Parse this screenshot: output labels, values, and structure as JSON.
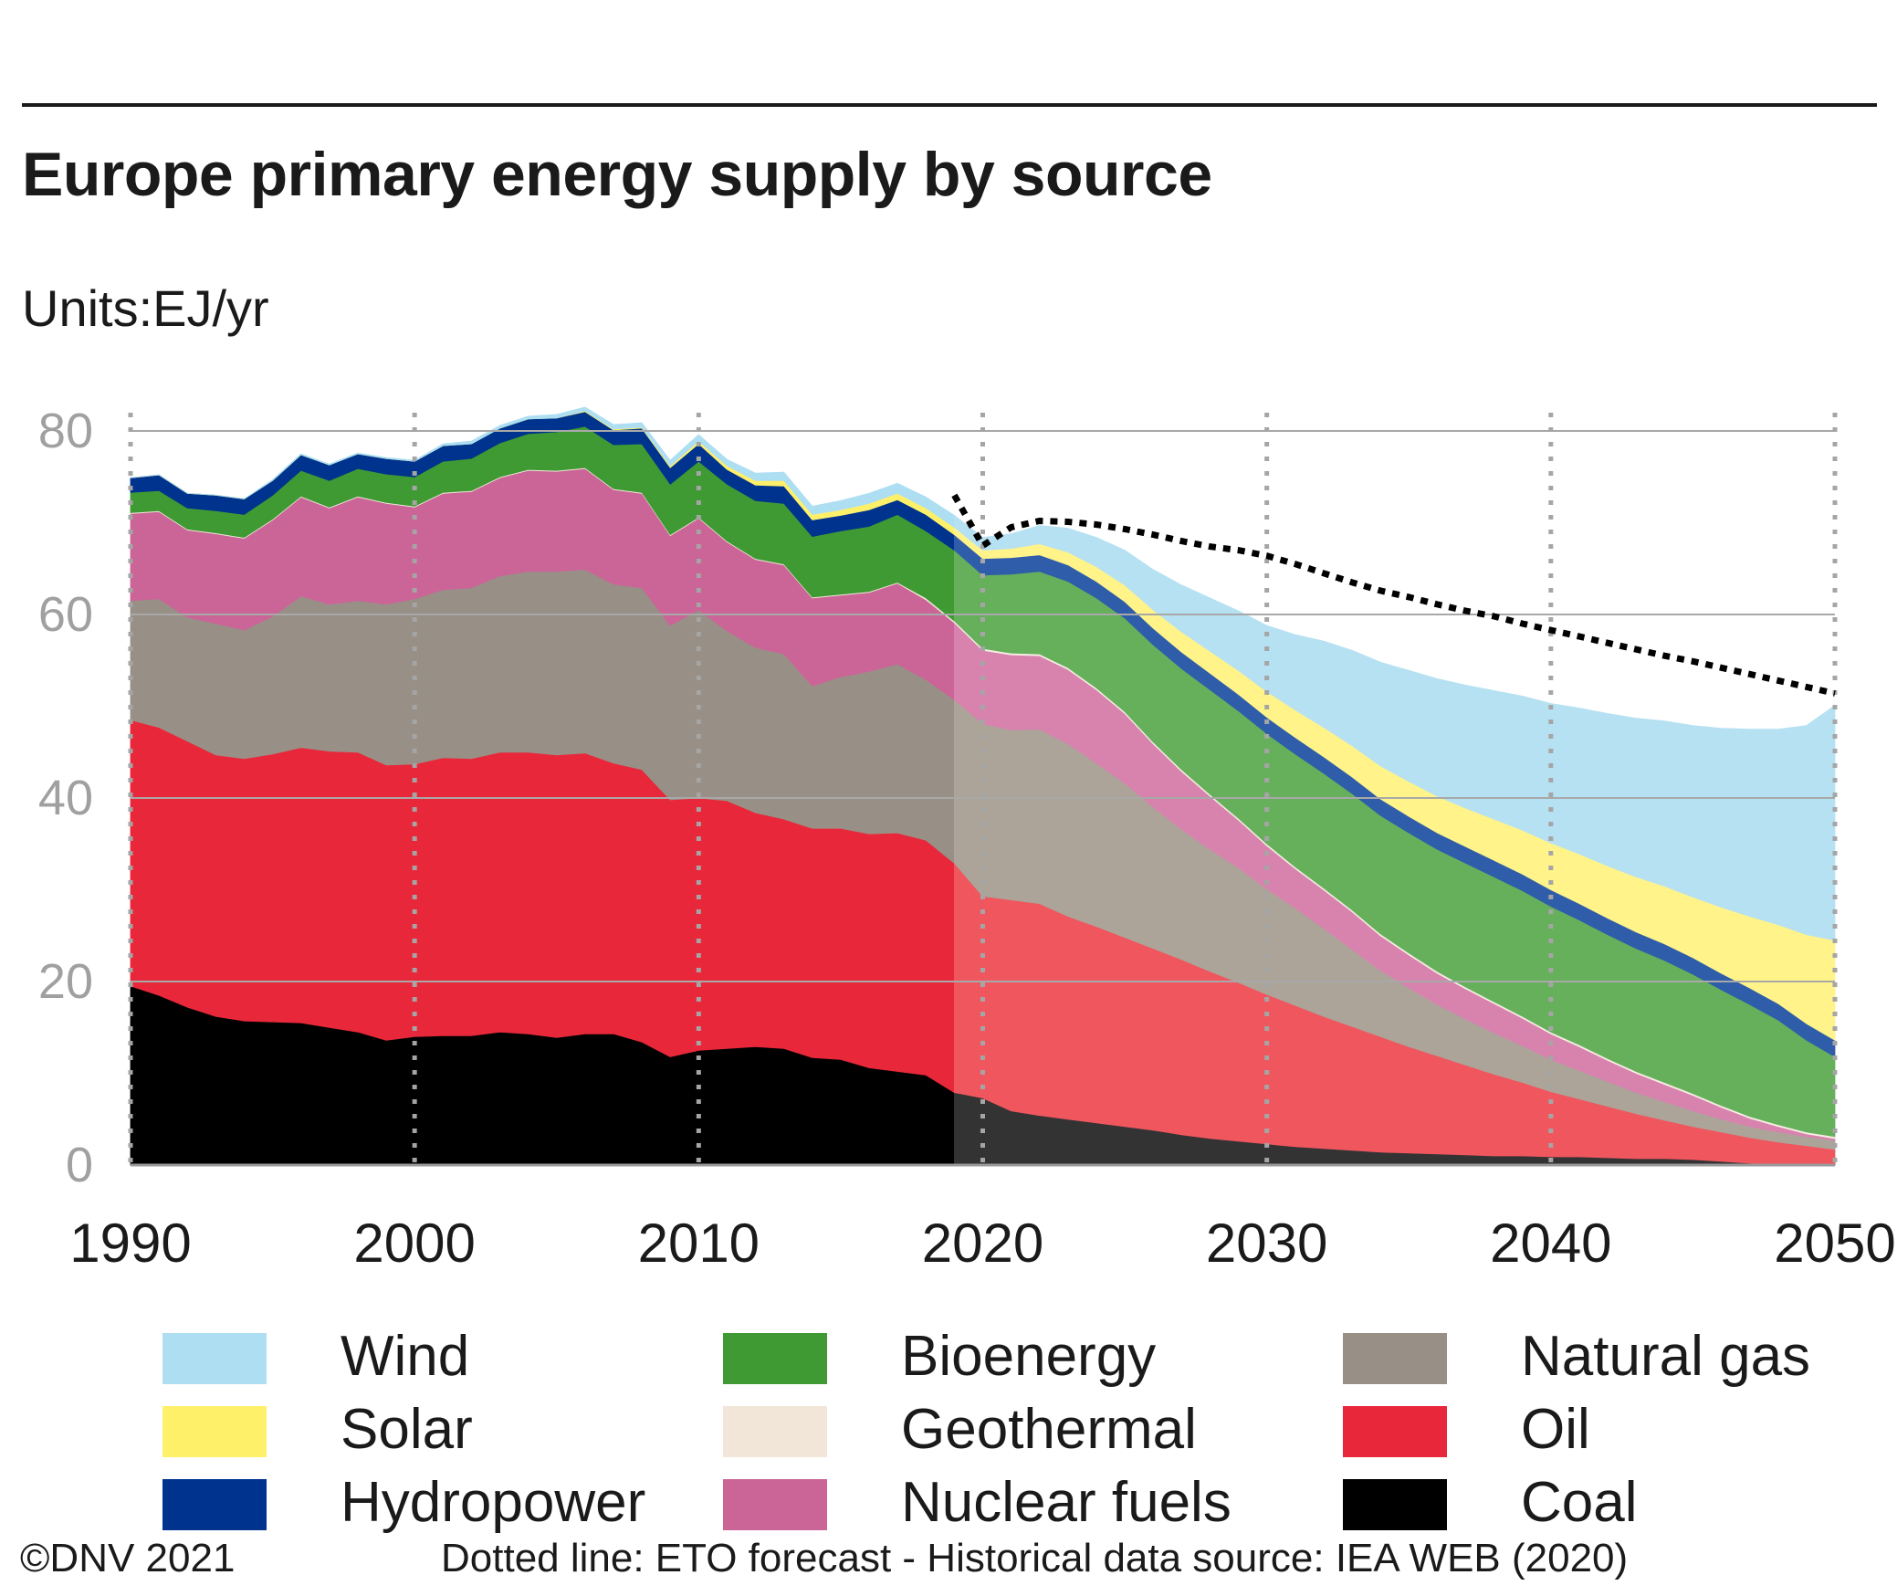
{
  "header": {
    "title": "Europe primary energy supply by source",
    "units": "Units:EJ/yr"
  },
  "footer": {
    "copyright": "©DNV 2021",
    "note": "Dotted line: ETO forecast - Historical data source: IEA WEB (2020)"
  },
  "chart_data": {
    "type": "area",
    "stacked": true,
    "forecast_start": 2019,
    "xlim": [
      1990,
      2050
    ],
    "ylim": [
      0,
      80
    ],
    "x_ticks": [
      1990,
      2000,
      2010,
      2020,
      2030,
      2040,
      2050
    ],
    "y_ticks": [
      0,
      20,
      40,
      60,
      80
    ],
    "grid": true,
    "legend_position": "bottom",
    "x": [
      1990,
      1991,
      1992,
      1993,
      1994,
      1995,
      1996,
      1997,
      1998,
      1999,
      2000,
      2001,
      2002,
      2003,
      2004,
      2005,
      2006,
      2007,
      2008,
      2009,
      2010,
      2011,
      2012,
      2013,
      2014,
      2015,
      2016,
      2017,
      2018,
      2019,
      2020,
      2021,
      2022,
      2023,
      2024,
      2025,
      2026,
      2027,
      2028,
      2029,
      2030,
      2031,
      2032,
      2033,
      2034,
      2035,
      2036,
      2037,
      2038,
      2039,
      2040,
      2041,
      2042,
      2043,
      2044,
      2045,
      2046,
      2047,
      2048,
      2049,
      2050
    ],
    "series": [
      {
        "name": "Coal",
        "color": "#000000",
        "forecast_color": "#333333",
        "values": [
          19.5,
          18.5,
          17.2,
          16.2,
          15.7,
          15.6,
          15.5,
          15.0,
          14.5,
          13.6,
          14.0,
          14.1,
          14.1,
          14.5,
          14.3,
          13.9,
          14.3,
          14.3,
          13.4,
          11.8,
          12.5,
          12.7,
          12.9,
          12.7,
          11.7,
          11.5,
          10.6,
          10.2,
          9.8,
          7.9,
          7.3,
          5.9,
          5.4,
          5.0,
          4.6,
          4.2,
          3.8,
          3.3,
          2.9,
          2.6,
          2.3,
          2.0,
          1.8,
          1.6,
          1.4,
          1.3,
          1.2,
          1.1,
          1.0,
          1.0,
          0.9,
          0.9,
          0.8,
          0.7,
          0.7,
          0.6,
          0.4,
          0.2,
          0.1,
          0.1,
          0.1
        ]
      },
      {
        "name": "Oil",
        "color": "#E8283A",
        "forecast_color": "#EF565E",
        "values": [
          29.0,
          29.2,
          29.0,
          28.5,
          28.6,
          29.2,
          30.0,
          30.1,
          30.5,
          30.0,
          29.7,
          30.3,
          30.2,
          30.5,
          30.7,
          30.8,
          30.6,
          29.5,
          29.7,
          28.0,
          27.5,
          27.0,
          25.5,
          25.0,
          25.0,
          25.2,
          25.5,
          26.0,
          25.6,
          25.0,
          22.0,
          23.0,
          23.1,
          22.1,
          21.4,
          20.6,
          19.8,
          19.1,
          18.2,
          17.3,
          16.3,
          15.4,
          14.4,
          13.5,
          12.6,
          11.6,
          10.7,
          9.8,
          8.9,
          8.0,
          7.1,
          6.3,
          5.6,
          4.9,
          4.2,
          3.6,
          3.2,
          2.8,
          2.4,
          2.0,
          1.6
        ]
      },
      {
        "name": "Natural gas",
        "color": "#989086",
        "forecast_color": "#ACA499",
        "values": [
          13.0,
          14.0,
          13.5,
          14.3,
          14.0,
          15.0,
          16.5,
          16.0,
          16.5,
          17.5,
          18.0,
          18.3,
          18.6,
          19.2,
          19.7,
          20.0,
          20.0,
          19.5,
          19.8,
          19.0,
          20.5,
          18.5,
          18.0,
          18.0,
          15.5,
          16.5,
          17.7,
          18.4,
          17.5,
          17.8,
          18.8,
          18.5,
          19.0,
          18.8,
          17.8,
          16.8,
          15.4,
          14.2,
          13.3,
          12.5,
          11.5,
          10.6,
          9.6,
          8.4,
          7.2,
          6.4,
          5.6,
          5.0,
          4.5,
          4.0,
          3.5,
          3.1,
          2.7,
          2.3,
          2.0,
          1.7,
          1.4,
          1.2,
          1.1,
          1.0,
          1.0
        ]
      },
      {
        "name": "Nuclear fuels",
        "color": "#CB6598",
        "forecast_color": "#D883AE",
        "values": [
          9.5,
          9.5,
          9.5,
          9.8,
          10.0,
          10.5,
          10.8,
          10.5,
          11.3,
          11.0,
          10.0,
          10.5,
          10.5,
          10.7,
          11.0,
          10.9,
          11.0,
          10.3,
          10.3,
          9.8,
          10.0,
          9.7,
          9.6,
          9.7,
          9.6,
          8.9,
          8.6,
          8.8,
          8.7,
          8.4,
          8.0,
          8.2,
          8.0,
          8.1,
          8.0,
          7.6,
          6.9,
          6.3,
          5.8,
          5.2,
          4.7,
          4.3,
          4.2,
          4.1,
          3.8,
          3.6,
          3.4,
          3.3,
          3.2,
          3.0,
          2.8,
          2.6,
          2.3,
          2.1,
          1.9,
          1.7,
          1.3,
          0.9,
          0.6,
          0.3,
          0.2
        ]
      },
      {
        "name": "Geothermal",
        "color": "#F2E6D8",
        "forecast_color": "#F6EDE3",
        "values": [
          0.1,
          0.1,
          0.1,
          0.1,
          0.1,
          0.1,
          0.1,
          0.1,
          0.1,
          0.1,
          0.1,
          0.1,
          0.1,
          0.1,
          0.1,
          0.1,
          0.1,
          0.1,
          0.1,
          0.1,
          0.1,
          0.1,
          0.1,
          0.1,
          0.1,
          0.1,
          0.1,
          0.1,
          0.2,
          0.2,
          0.2,
          0.2,
          0.2,
          0.2,
          0.2,
          0.2,
          0.2,
          0.2,
          0.2,
          0.2,
          0.2,
          0.2,
          0.2,
          0.2,
          0.2,
          0.2,
          0.2,
          0.2,
          0.2,
          0.2,
          0.2,
          0.2,
          0.2,
          0.2,
          0.2,
          0.2,
          0.2,
          0.2,
          0.2,
          0.2,
          0.2
        ]
      },
      {
        "name": "Bioenergy",
        "color": "#3F9A34",
        "forecast_color": "#66B05C",
        "values": [
          2.2,
          2.2,
          2.3,
          2.4,
          2.5,
          2.6,
          2.8,
          2.9,
          3.0,
          3.1,
          3.2,
          3.4,
          3.5,
          3.7,
          3.9,
          4.2,
          4.5,
          4.8,
          5.3,
          5.5,
          6.1,
          6.2,
          6.3,
          6.6,
          6.6,
          6.9,
          7.1,
          7.4,
          7.3,
          7.7,
          8.0,
          8.6,
          9.0,
          9.4,
          9.8,
          10.2,
          10.6,
          11.0,
          11.4,
          11.7,
          12.0,
          12.3,
          12.5,
          12.7,
          12.9,
          13.1,
          13.3,
          13.5,
          13.6,
          13.7,
          13.7,
          13.6,
          13.5,
          13.4,
          13.3,
          13.0,
          12.6,
          12.2,
          11.4,
          10.0,
          8.7
        ]
      },
      {
        "name": "Hydropower",
        "color": "#00338D",
        "forecast_color": "#2F5DAA",
        "values": [
          1.6,
          1.7,
          1.6,
          1.7,
          1.7,
          1.6,
          1.7,
          1.7,
          1.6,
          1.7,
          1.7,
          1.7,
          1.6,
          1.6,
          1.6,
          1.5,
          1.6,
          1.6,
          1.7,
          1.8,
          1.9,
          1.6,
          1.7,
          1.9,
          1.8,
          1.7,
          1.8,
          1.6,
          1.8,
          1.7,
          1.8,
          1.8,
          1.8,
          1.8,
          1.8,
          1.8,
          1.8,
          1.8,
          1.8,
          1.8,
          1.8,
          1.8,
          1.8,
          1.8,
          1.8,
          1.8,
          1.8,
          1.8,
          1.8,
          1.8,
          1.8,
          1.8,
          1.8,
          1.8,
          1.8,
          1.8,
          1.8,
          1.8,
          1.8,
          1.8,
          1.8
        ]
      },
      {
        "name": "Solar",
        "color": "#FFF06A",
        "forecast_color": "#FFF38A",
        "values": [
          0.0,
          0.0,
          0.0,
          0.0,
          0.0,
          0.0,
          0.0,
          0.0,
          0.0,
          0.0,
          0.0,
          0.0,
          0.0,
          0.0,
          0.0,
          0.0,
          0.1,
          0.1,
          0.1,
          0.2,
          0.3,
          0.4,
          0.5,
          0.6,
          0.6,
          0.6,
          0.7,
          0.7,
          0.7,
          0.8,
          0.9,
          1.0,
          1.2,
          1.4,
          1.6,
          1.8,
          2.0,
          2.2,
          2.4,
          2.6,
          2.8,
          3.0,
          3.2,
          3.4,
          3.6,
          3.8,
          4.0,
          4.2,
          4.5,
          4.8,
          5.1,
          5.4,
          5.7,
          6.0,
          6.3,
          6.6,
          7.2,
          7.8,
          8.6,
          9.7,
          10.9
        ]
      },
      {
        "name": "Wind",
        "color": "#ADDEF2",
        "forecast_color": "#B6E1F2",
        "values": [
          0.0,
          0.0,
          0.0,
          0.0,
          0.0,
          0.1,
          0.1,
          0.1,
          0.1,
          0.1,
          0.1,
          0.2,
          0.3,
          0.3,
          0.3,
          0.4,
          0.4,
          0.5,
          0.5,
          0.6,
          0.7,
          0.7,
          0.8,
          0.9,
          0.9,
          1.0,
          1.1,
          1.1,
          1.2,
          1.3,
          1.4,
          1.6,
          2.0,
          2.6,
          3.2,
          3.8,
          4.4,
          5.1,
          5.8,
          6.5,
          7.2,
          8.2,
          9.4,
          10.4,
          11.3,
          12.1,
          12.8,
          13.4,
          14.0,
          14.6,
          15.2,
          15.9,
          16.6,
          17.3,
          18.0,
          18.7,
          19.5,
          20.4,
          21.3,
          22.8,
          25.6
        ]
      }
    ],
    "eto_forecast": {
      "x": [
        2019,
        2020,
        2021,
        2022,
        2023,
        2024,
        2025,
        2026,
        2027,
        2028,
        2029,
        2030,
        2031,
        2032,
        2033,
        2034,
        2035,
        2036,
        2037,
        2038,
        2039,
        2040,
        2041,
        2042,
        2043,
        2044,
        2045,
        2046,
        2047,
        2048,
        2049,
        2050
      ],
      "values": [
        73.0,
        67.5,
        69.5,
        70.2,
        70.1,
        69.8,
        69.3,
        68.7,
        68.0,
        67.4,
        67.0,
        66.4,
        65.5,
        64.5,
        63.5,
        62.6,
        61.9,
        61.1,
        60.4,
        59.8,
        59.0,
        58.3,
        57.6,
        56.9,
        56.2,
        55.5,
        54.9,
        54.2,
        53.5,
        52.8,
        52.1,
        51.4
      ]
    },
    "legend": [
      {
        "label": "Wind",
        "color": "#ADDEF2"
      },
      {
        "label": "Solar",
        "color": "#FFF06A"
      },
      {
        "label": "Hydropower",
        "color": "#00338D"
      },
      {
        "label": "Bioenergy",
        "color": "#3F9A34"
      },
      {
        "label": "Geothermal",
        "color": "#F2E6D8"
      },
      {
        "label": "Nuclear fuels",
        "color": "#CB6598"
      },
      {
        "label": "Natural gas",
        "color": "#989086"
      },
      {
        "label": "Oil",
        "color": "#E8283A"
      },
      {
        "label": "Coal",
        "color": "#000000"
      }
    ]
  }
}
